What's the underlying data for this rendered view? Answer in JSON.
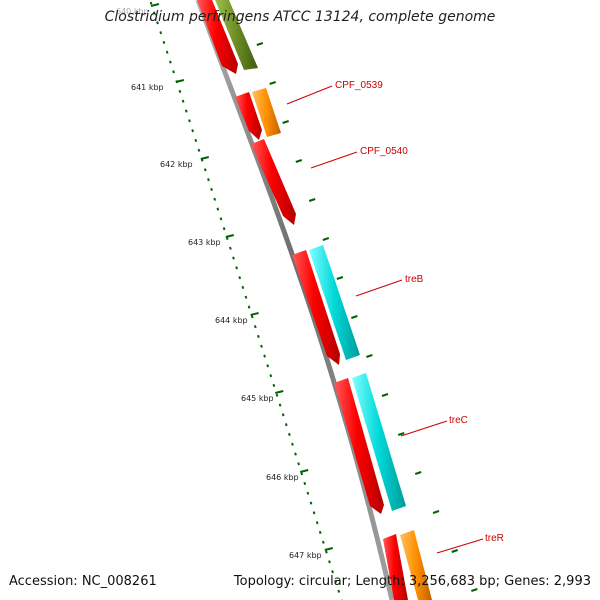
{
  "title": "Clostridium perfringens ATCC 13124, complete genome",
  "scale_labels": [
    "640 kbp",
    "641 kbp",
    "642 kbp",
    "643 kbp",
    "644 kbp",
    "645 kbp",
    "646 kbp",
    "647 kbp"
  ],
  "gene_labels": [
    "CPF_0539",
    "CPF_0540",
    "treB",
    "treC",
    "treR"
  ],
  "footer": {
    "accession": "Accession: NC_008261",
    "summary": "Topology: circular; Length: 3,256,683 bp; Genes: 2,993"
  },
  "colors": {
    "backbone": "#808080",
    "cds": "#ff0000",
    "cog_olive": "#6b8e23",
    "cog_orange": "#ff8c00",
    "cog_cyan": "#00ced1",
    "tick": "#006400",
    "label": "#cc0000"
  }
}
